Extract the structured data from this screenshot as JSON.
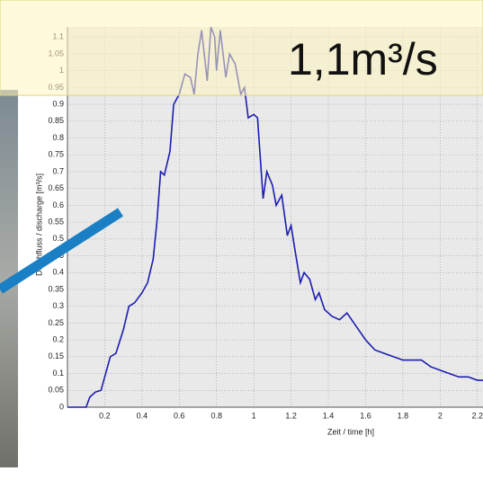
{
  "chart_data": {
    "type": "line",
    "ylabel": "Durchfluss / discharge [m³/s]",
    "xlabel": "Zeit / time [h]",
    "annotation": "1,1m³/s",
    "xlim": [
      0,
      2.23
    ],
    "ylim": [
      0,
      1.13
    ],
    "xticks": [
      0.2,
      0.4,
      0.6,
      0.8,
      1,
      1.2,
      1.4,
      1.6,
      1.8,
      2,
      2.2
    ],
    "yticks": [
      0,
      0.05,
      0.1,
      0.15,
      0.2,
      0.25,
      0.3,
      0.35,
      0.4,
      0.45,
      0.5,
      0.55,
      0.6,
      0.65,
      0.7,
      0.75,
      0.8,
      0.85,
      0.9,
      0.95,
      1,
      1.05,
      1.1
    ],
    "grid": true,
    "series": [
      {
        "color": "#1c1cb0",
        "x": [
          0,
          0.1,
          0.12,
          0.15,
          0.18,
          0.2,
          0.23,
          0.26,
          0.3,
          0.33,
          0.36,
          0.4,
          0.43,
          0.46,
          0.48,
          0.5,
          0.52,
          0.55,
          0.57,
          0.6,
          0.63,
          0.66,
          0.68,
          0.7,
          0.72,
          0.75,
          0.77,
          0.79,
          0.8,
          0.82,
          0.85,
          0.87,
          0.9,
          0.93,
          0.95,
          0.97,
          1.0,
          1.02,
          1.05,
          1.07,
          1.1,
          1.12,
          1.15,
          1.18,
          1.2,
          1.22,
          1.25,
          1.27,
          1.3,
          1.33,
          1.35,
          1.38,
          1.42,
          1.46,
          1.5,
          1.55,
          1.6,
          1.65,
          1.7,
          1.75,
          1.8,
          1.85,
          1.9,
          1.95,
          2.0,
          2.05,
          2.1,
          2.15,
          2.2,
          2.23
        ],
        "values": [
          0,
          0,
          0.03,
          0.045,
          0.05,
          0.09,
          0.15,
          0.16,
          0.23,
          0.3,
          0.31,
          0.34,
          0.37,
          0.44,
          0.55,
          0.7,
          0.69,
          0.76,
          0.9,
          0.93,
          0.99,
          0.98,
          0.93,
          1.05,
          1.12,
          0.97,
          1.13,
          1.1,
          1.0,
          1.12,
          0.98,
          1.05,
          1.02,
          0.93,
          0.95,
          0.86,
          0.87,
          0.86,
          0.62,
          0.7,
          0.66,
          0.6,
          0.63,
          0.51,
          0.54,
          0.47,
          0.37,
          0.4,
          0.38,
          0.32,
          0.34,
          0.29,
          0.27,
          0.26,
          0.28,
          0.24,
          0.2,
          0.17,
          0.16,
          0.15,
          0.14,
          0.14,
          0.14,
          0.12,
          0.11,
          0.1,
          0.09,
          0.09,
          0.08,
          0.08
        ]
      }
    ]
  }
}
